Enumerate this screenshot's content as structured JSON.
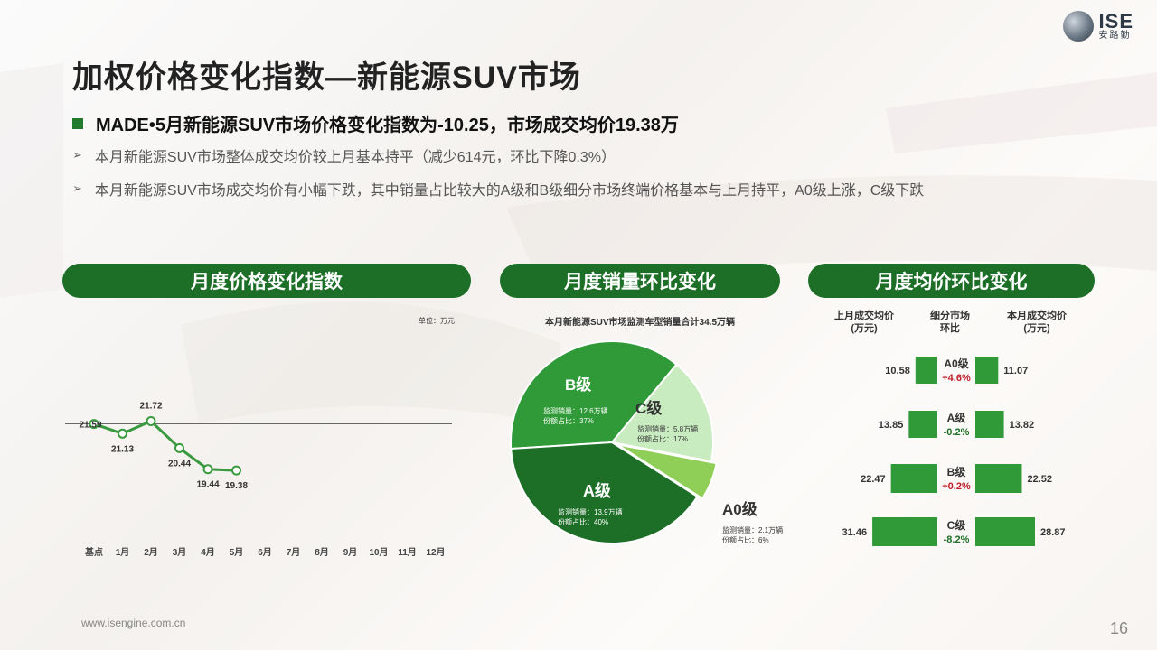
{
  "title": "加权价格变化指数—新能源SUV市场",
  "logo": {
    "big": "ISE",
    "small": "安路勤"
  },
  "headline": "MADE•5月新能源SUV市场价格变化指数为-10.25，市场成交均价19.38万",
  "bullets": [
    "本月新能源SUV市场整体成交均价较上月基本持平（减少614元，环比下降0.3%）",
    "本月新能源SUV市场成交均价有小幅下跌，其中销量占比较大的A级和B级细分市场终端价格基本与上月持平，A0级上涨，C级下跌"
  ],
  "sections": {
    "index": "月度价格变化指数",
    "sales": "月度销量环比变化",
    "price": "月度均价环比变化"
  },
  "unit_label": "单位：万元",
  "pie_title": "本月新能源SUV市场监测车型销量合计34.5万辆",
  "price_headers": {
    "left": "上月成交均价\n(万元)",
    "mid": "细分市场\n环比",
    "right": "本月成交均价\n(万元)"
  },
  "footer": "www.isengine.com.cn",
  "page": "16",
  "colors": {
    "dark_green": "#1d6f28",
    "mid_green": "#2f9a37",
    "light_green": "#c8ebc0",
    "lime": "#8fcf58",
    "up": "#c0202c",
    "down": "#1d6f28"
  },
  "chart_data": [
    {
      "type": "line",
      "title": "月度价格变化指数",
      "categories": [
        "基点",
        "1月",
        "2月",
        "3月",
        "4月",
        "5月",
        "6月",
        "7月",
        "8月",
        "9月",
        "10月",
        "11月",
        "12月"
      ],
      "series": [
        {
          "values": [
            21.59,
            21.13,
            21.72,
            20.44,
            19.44,
            19.38
          ]
        }
      ],
      "labels": [
        "21.59",
        "21.13",
        "21.72",
        "20.44",
        "19.44",
        "19.38"
      ],
      "baseline": 21.59
    },
    {
      "type": "pie",
      "title": "本月新能源SUV市场监测车型销量合计34.5万辆",
      "slices": [
        {
          "name": "B级",
          "sales_label": "监测销量：12.6万辆",
          "share_label": "份额占比：37%",
          "value": 37,
          "color": "#2f9a37"
        },
        {
          "name": "C级",
          "sales_label": "监测销量：5.8万辆",
          "share_label": "份额占比：17%",
          "value": 17,
          "color": "#c8ebc0"
        },
        {
          "name": "A0级",
          "sales_label": "监测销量：2.1万辆",
          "share_label": "份额占比：6%",
          "value": 6,
          "color": "#8fcf58"
        },
        {
          "name": "A级",
          "sales_label": "监测销量：13.9万辆",
          "share_label": "份额占比：40%",
          "value": 40,
          "color": "#1d6f28"
        }
      ]
    },
    {
      "type": "bar",
      "title": "月度均价环比变化",
      "rows": [
        {
          "segment": "A0级",
          "change": "+4.6%",
          "dir": "up",
          "prev": 10.58,
          "curr": 11.07
        },
        {
          "segment": "A级",
          "change": "-0.2%",
          "dir": "down",
          "prev": 13.85,
          "curr": 13.82
        },
        {
          "segment": "B级",
          "change": "+0.2%",
          "dir": "up",
          "prev": 22.47,
          "curr": 22.52
        },
        {
          "segment": "C级",
          "change": "-8.2%",
          "dir": "down",
          "prev": 31.46,
          "curr": 28.87
        }
      ]
    }
  ]
}
